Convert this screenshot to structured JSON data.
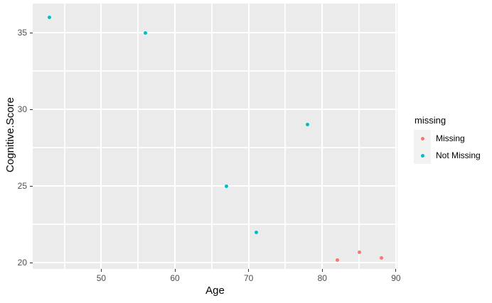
{
  "chart_data": {
    "type": "scatter",
    "title": "",
    "xlabel": "Age",
    "ylabel": "Cognitive.Score",
    "xlim": [
      40.7,
      90.2
    ],
    "ylim": [
      19.6,
      36.9
    ],
    "x_ticks": [
      50,
      60,
      70,
      80,
      90
    ],
    "y_ticks": [
      20,
      25,
      30,
      35
    ],
    "x_minor_ticks": [
      45,
      55,
      65,
      75,
      85
    ],
    "y_minor_ticks": [
      22.5,
      27.5,
      32.5
    ],
    "grid": true,
    "panel_background": "#EBEBEB",
    "gridline_color": "#FFFFFF",
    "legend": {
      "title": "missing",
      "position": "right",
      "key_background": "#F2F2F2",
      "entries": [
        {
          "label": "Missing",
          "color": "#F8766D"
        },
        {
          "label": "Not Missing",
          "color": "#00BFC4"
        }
      ]
    },
    "series": [
      {
        "name": "Missing",
        "color": "#F8766D",
        "points": [
          [
            82,
            20.2
          ],
          [
            85,
            20.7
          ],
          [
            88,
            20.3
          ]
        ]
      },
      {
        "name": "Not Missing",
        "color": "#00BFC4",
        "points": [
          [
            43,
            36
          ],
          [
            56,
            35
          ],
          [
            67,
            25
          ],
          [
            71,
            22
          ],
          [
            78,
            29
          ]
        ]
      }
    ]
  }
}
